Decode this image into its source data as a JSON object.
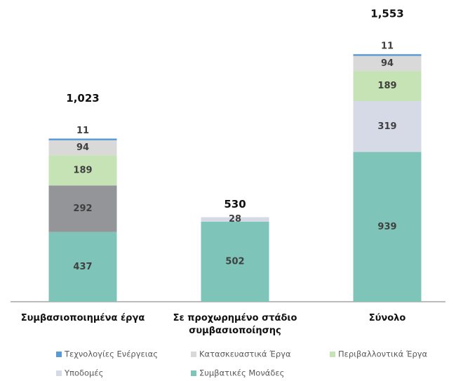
{
  "chart_data": {
    "type": "stacked_bar",
    "categories": [
      "Συμβασιοποιημένα έργα",
      "Σε προχωρημένο στάδιο συμβασιοποίησης",
      "Σύνολο"
    ],
    "series": [
      {
        "name": "Τεχνολογίες Ενέργειας",
        "color": "#5b9bd5",
        "values": [
          11,
          null,
          11
        ]
      },
      {
        "name": "Κατασκευαστικά Έργα",
        "color": "#d9d9d9",
        "values": [
          94,
          null,
          94
        ]
      },
      {
        "name": "Περιβαλλοντικά Έργα",
        "color": "#c5e3b4",
        "values": [
          189,
          null,
          189
        ]
      },
      {
        "name": "Υποδομές",
        "color": "#d6dae6",
        "values": [
          null,
          28,
          319
        ]
      },
      {
        "name": "Συμβατικές Μονάδες",
        "color": "#7fc4b8",
        "values": [
          437,
          502,
          939
        ]
      },
      {
        "color": "#939598",
        "values": [
          292,
          null,
          null
        ]
      }
    ],
    "stack_order": [
      4,
      5,
      3,
      2,
      1,
      0
    ],
    "totals": {
      "values": [
        1023,
        530,
        1553
      ],
      "value_labels": [
        "1,023",
        "530",
        "1,553"
      ]
    }
  }
}
